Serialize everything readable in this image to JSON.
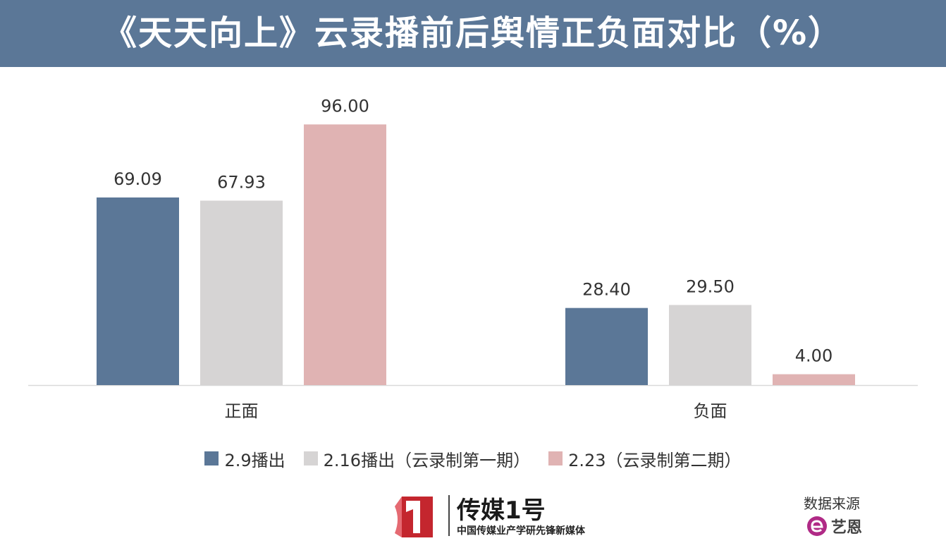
{
  "header": {
    "title": "《天天向上》云录播前后舆情正负面对比（%）"
  },
  "chart_data": {
    "type": "bar",
    "title": "《天天向上》云录播前后舆情正负面对比（%）",
    "categories": [
      "正面",
      "负面"
    ],
    "series": [
      {
        "name": "2.9播出",
        "values": [
          69.09,
          28.4
        ],
        "color": "#5b7797"
      },
      {
        "name": "2.16播出（云录制第一期）",
        "values": [
          67.93,
          29.5
        ],
        "color": "#d6d4d4"
      },
      {
        "name": "2.23（云录制第二期）",
        "values": [
          96.0,
          4.0
        ],
        "color": "#e0b3b3"
      }
    ],
    "value_labels": [
      [
        "69.09",
        "28.40"
      ],
      [
        "67.93",
        "29.50"
      ],
      [
        "96.00",
        "4.00"
      ]
    ],
    "ylim": [
      0,
      100
    ],
    "grid": false,
    "legend": "bottom"
  },
  "branding": {
    "logo_name": "传媒1号",
    "logo_slogan": "中国传媒业产学研先锋新媒体",
    "logo_icon": "red-one-logo-icon",
    "source_label": "数据来源",
    "source_name": "艺恩",
    "source_icon": "e-letter-logo-icon"
  }
}
